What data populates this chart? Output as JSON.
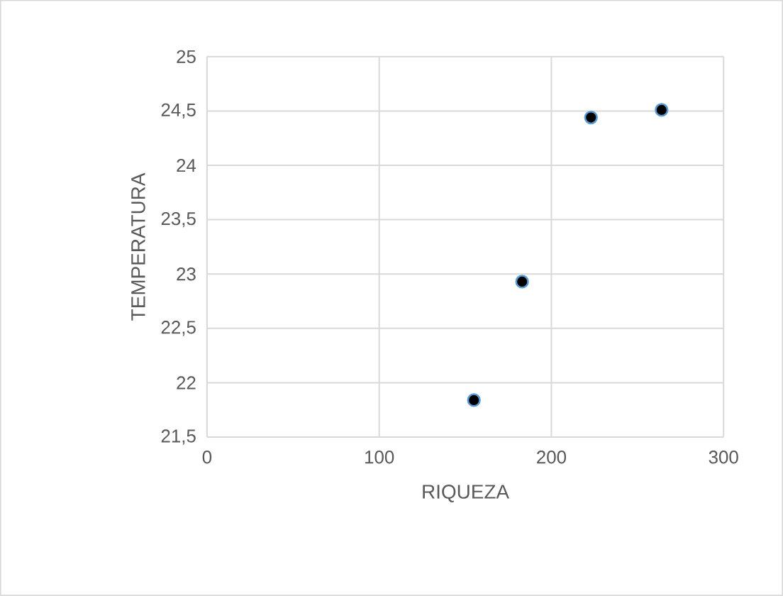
{
  "chart_data": {
    "type": "scatter",
    "xlabel": "RIQUEZA",
    "ylabel": "TEMPERATURA",
    "x": [
      155,
      183,
      223,
      264
    ],
    "series": [
      {
        "color": "#000000",
        "values": [
          21.84,
          22.93,
          24.44,
          24.51
        ]
      }
    ],
    "xlim": [
      0,
      300
    ],
    "xticks": [
      0,
      100,
      200,
      300
    ],
    "ylim": [
      21.5,
      25
    ],
    "yticks": [
      {
        "value": 21.5,
        "label": "21,5"
      },
      22,
      {
        "value": 22.5,
        "label": "22,5"
      },
      23,
      {
        "value": 23.5,
        "label": "23,5"
      },
      24,
      {
        "value": 24.5,
        "label": "24,5"
      },
      25
    ],
    "grid": true
  }
}
